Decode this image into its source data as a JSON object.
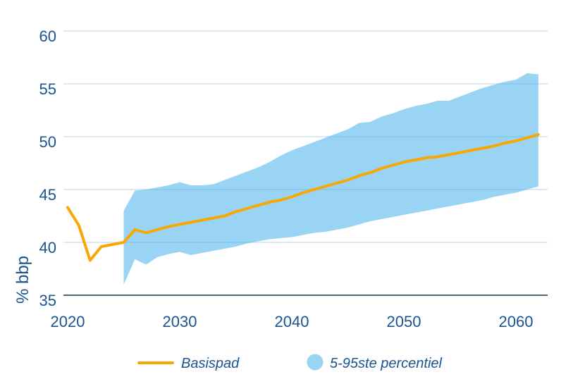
{
  "colors": {
    "text_blue": "#1B5490",
    "basispad_orange": "#F8A800",
    "band_fill_rgba": "rgba(71,177,236,0.55)",
    "band_solid": "#9AD4F5",
    "gridline": "#D2E2EC",
    "axis_line": "#4D6570"
  },
  "chart_data": {
    "type": "area",
    "title": "",
    "xlabel": "",
    "ylabel": "% bbp",
    "xlim": [
      2020,
      2062
    ],
    "ylim": [
      35,
      60
    ],
    "x_ticks": [
      2020,
      2030,
      2040,
      2050,
      2060
    ],
    "y_ticks": [
      35,
      40,
      45,
      50,
      55,
      60
    ],
    "grid": "horizontal",
    "legend_position": "bottom-center",
    "series": [
      {
        "name": "Basispad",
        "type": "line",
        "color": "#F8A800",
        "x": [
          2020,
          2021,
          2022,
          2023,
          2024,
          2025,
          2026,
          2027,
          2028,
          2029,
          2030,
          2031,
          2032,
          2033,
          2034,
          2035,
          2036,
          2037,
          2038,
          2039,
          2040,
          2041,
          2042,
          2043,
          2044,
          2045,
          2046,
          2047,
          2048,
          2049,
          2050,
          2051,
          2052,
          2053,
          2054,
          2055,
          2056,
          2057,
          2058,
          2059,
          2060,
          2061,
          2062
        ],
        "values": [
          43.3,
          41.6,
          38.3,
          39.6,
          39.8,
          40.0,
          41.2,
          40.9,
          41.2,
          41.5,
          41.7,
          41.9,
          42.1,
          42.3,
          42.5,
          42.9,
          43.2,
          43.5,
          43.8,
          44.0,
          44.3,
          44.7,
          45.0,
          45.3,
          45.6,
          45.9,
          46.3,
          46.6,
          47.0,
          47.3,
          47.6,
          47.8,
          48.0,
          48.1,
          48.3,
          48.5,
          48.7,
          48.9,
          49.1,
          49.4,
          49.6,
          49.9,
          50.2
        ]
      },
      {
        "name": "5-95ste percentiel",
        "type": "band",
        "color": "#9AD4F5",
        "x": [
          2025,
          2026,
          2027,
          2028,
          2029,
          2030,
          2031,
          2032,
          2033,
          2034,
          2035,
          2036,
          2037,
          2038,
          2039,
          2040,
          2041,
          2042,
          2043,
          2044,
          2045,
          2046,
          2047,
          2048,
          2049,
          2050,
          2051,
          2052,
          2053,
          2054,
          2055,
          2056,
          2057,
          2058,
          2059,
          2060,
          2061,
          2062
        ],
        "low": [
          36.0,
          38.4,
          37.9,
          38.6,
          38.9,
          39.1,
          38.8,
          39.0,
          39.2,
          39.4,
          39.6,
          39.9,
          40.1,
          40.3,
          40.4,
          40.5,
          40.7,
          40.9,
          41.0,
          41.2,
          41.4,
          41.7,
          42.0,
          42.2,
          42.4,
          42.6,
          42.8,
          43.0,
          43.2,
          43.4,
          43.6,
          43.8,
          44.0,
          44.3,
          44.5,
          44.7,
          45.0,
          45.3
        ],
        "high": [
          43.0,
          44.9,
          45.0,
          45.2,
          45.4,
          45.7,
          45.4,
          45.4,
          45.5,
          45.9,
          46.3,
          46.7,
          47.1,
          47.6,
          48.2,
          48.7,
          49.1,
          49.5,
          49.9,
          50.3,
          50.7,
          51.3,
          51.4,
          51.9,
          52.2,
          52.6,
          52.9,
          53.1,
          53.4,
          53.4,
          53.8,
          54.2,
          54.6,
          54.9,
          55.2,
          55.4,
          56.0,
          55.9
        ]
      }
    ]
  }
}
